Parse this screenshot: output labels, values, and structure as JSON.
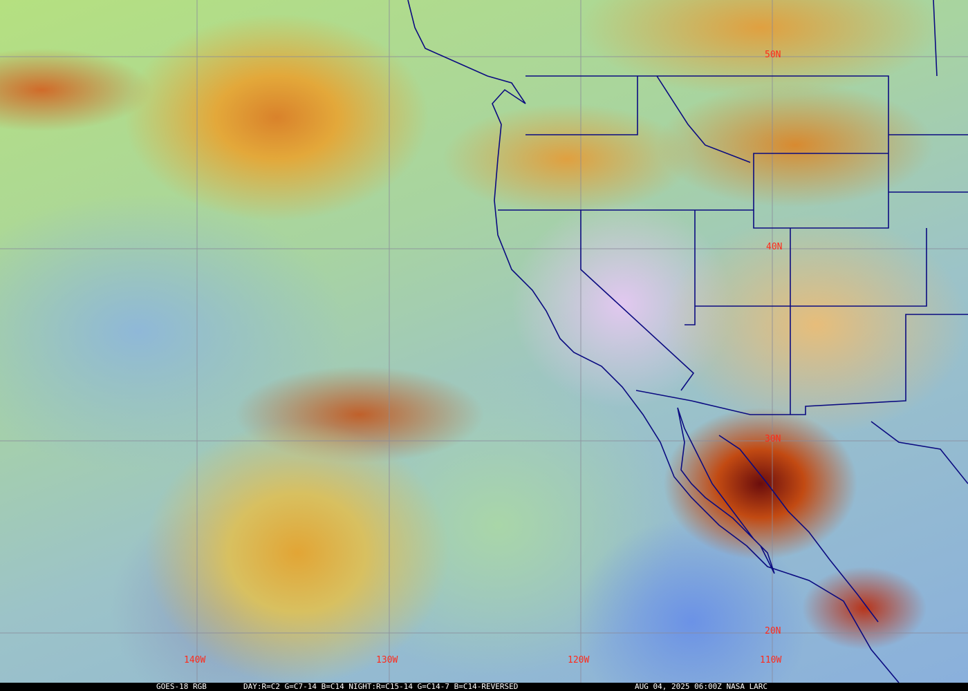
{
  "map": {
    "product": "GOES-18 RGB",
    "recipe": "DAY:R=C2 G=C7-14 B=C14 NIGHT:R=C15-14 G=C14-7 B=C14-REVERSED",
    "timestamp": "AUG 04, 2025 06:00Z NASA LARC",
    "lat_labels": [
      "50N",
      "40N",
      "30N",
      "20N"
    ],
    "lon_labels": [
      "140W",
      "130W",
      "120W",
      "110W"
    ],
    "colors": {
      "grid": "#8a8a9a",
      "borders": "#0a0a80",
      "labels": "#ff2a1a"
    }
  }
}
